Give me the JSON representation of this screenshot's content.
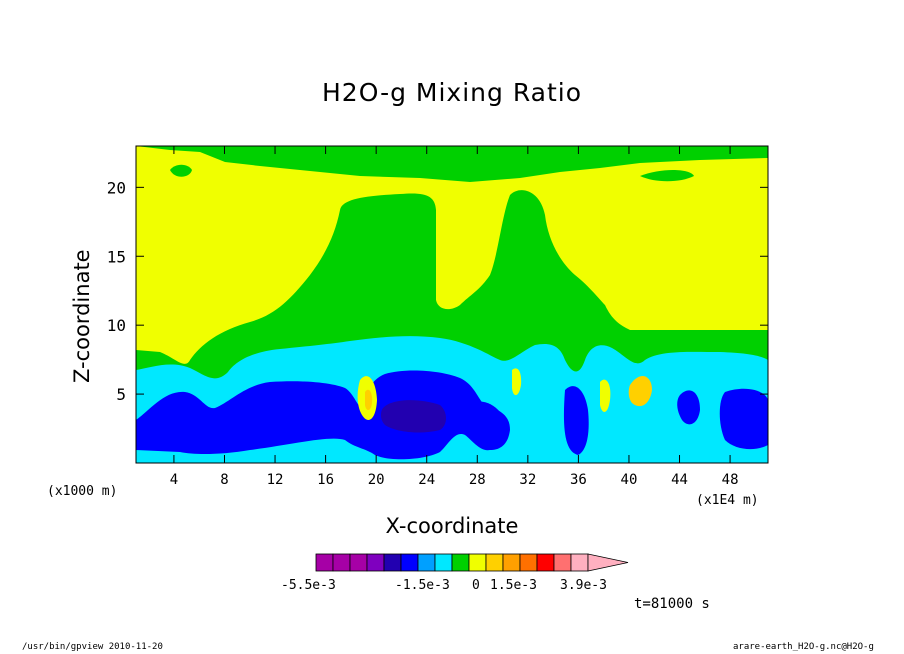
{
  "chart_data": {
    "type": "heatmap",
    "title": "H2O-g Mixing Ratio",
    "xlabel": "X-coordinate",
    "ylabel": "Z-coordinate",
    "x_unit_left": "(x1000 m)",
    "x_unit_right": "(x1E4 m)",
    "xlim": [
      1,
      51
    ],
    "ylim": [
      0,
      23
    ],
    "x_ticks": [
      4,
      8,
      12,
      16,
      20,
      24,
      28,
      32,
      36,
      40,
      44,
      48
    ],
    "y_ticks": [
      5,
      10,
      15,
      20
    ],
    "colorbar": {
      "colors": [
        "#a600a6",
        "#a600a6",
        "#a600a6",
        "#7f00bf",
        "#2200b0",
        "#0000ff",
        "#00a0ff",
        "#00e8ff",
        "#00d000",
        "#f0ff00",
        "#ffd000",
        "#ffa000",
        "#ff7000",
        "#ff0000",
        "#ff7070",
        "#ffb0c0"
      ],
      "labels": [
        "-5.5e-3",
        "-1.5e-3",
        "0",
        "1.5e-3",
        "3.9e-3"
      ]
    },
    "time_label": "t=81000 s"
  },
  "footer": {
    "left": "/usr/bin/gpview  2010-11-20",
    "right": "arare-earth_H2O-g.nc@H2O-g"
  }
}
